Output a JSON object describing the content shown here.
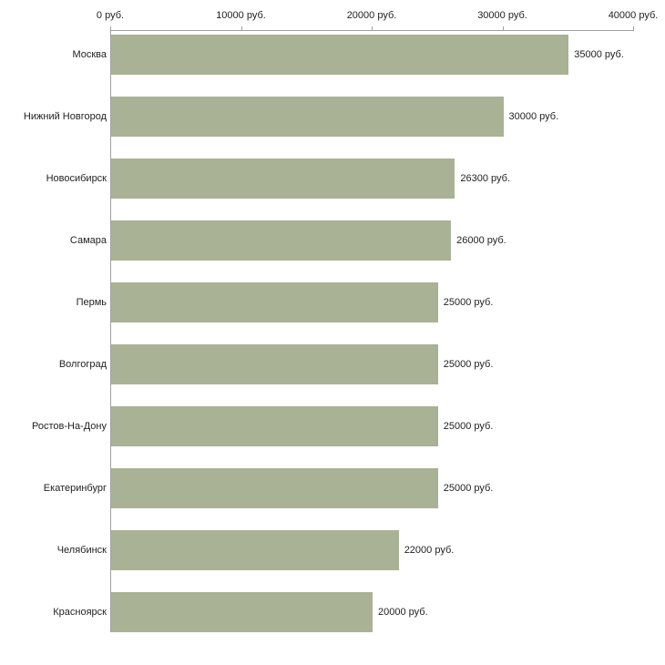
{
  "chart_data": {
    "type": "bar",
    "orientation": "horizontal",
    "title": "",
    "xlabel": "",
    "ylabel": "",
    "grid": false,
    "legend": false,
    "bar_color": "#a9b294",
    "categories": [
      "Москва",
      "Нижний Новгород",
      "Новосибирск",
      "Самара",
      "Пермь",
      "Волгоград",
      "Ростов-На-Дону",
      "Екатеринбург",
      "Челябинск",
      "Красноярск"
    ],
    "values": [
      35000,
      30000,
      26300,
      26000,
      25000,
      25000,
      25000,
      25000,
      22000,
      20000
    ],
    "value_labels": [
      "35000 руб.",
      "30000 руб.",
      "26300 руб.",
      "26000 руб.",
      "25000 руб.",
      "25000 руб.",
      "25000 руб.",
      "25000 руб.",
      "22000 руб.",
      "20000 руб."
    ],
    "x_axis": {
      "position": "top",
      "min": 0,
      "max": 40000,
      "ticks": [
        0,
        10000,
        20000,
        30000,
        40000
      ],
      "tick_labels": [
        "0 руб.",
        "10000 руб.",
        "20000 руб.",
        "30000 руб.",
        "40000 руб."
      ]
    }
  }
}
